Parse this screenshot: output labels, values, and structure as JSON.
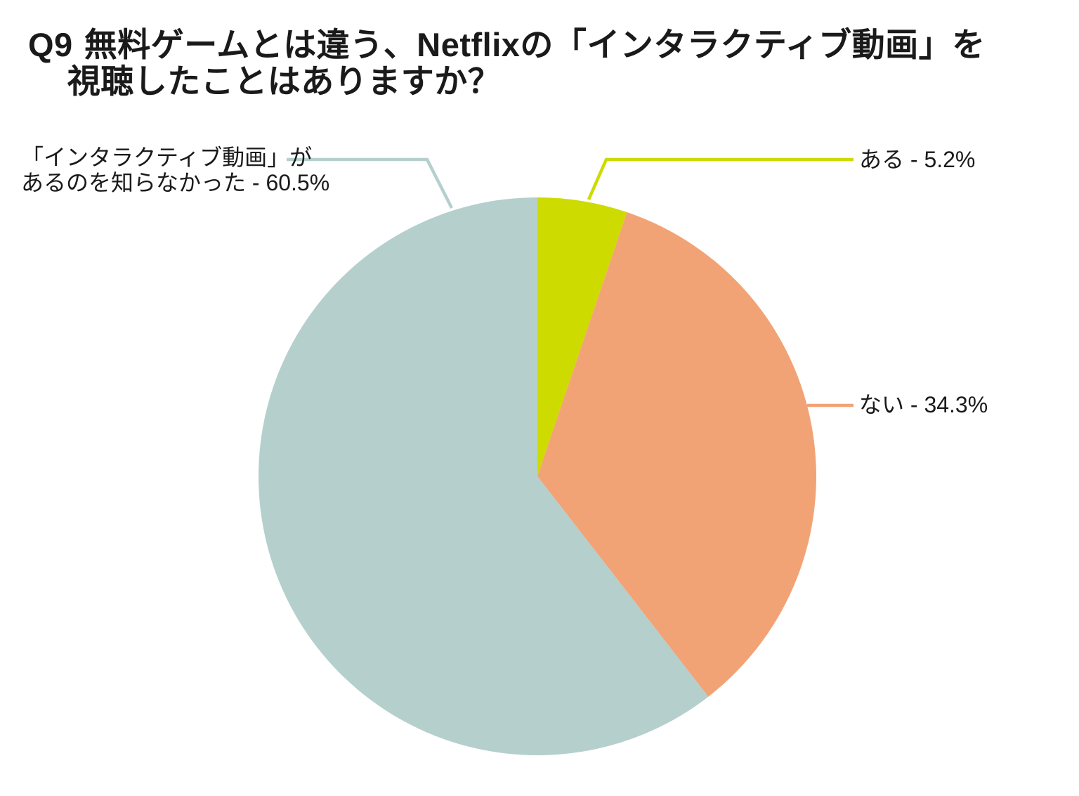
{
  "header": {
    "question_number": "Q9",
    "title_line1": "無料ゲームとは違う、Netflixの「インタラクティブ動画」を",
    "title_line2": "視聴したことはありますか？"
  },
  "chart_data": {
    "type": "pie",
    "title": "Q9 無料ゲームとは違う、Netflixの「インタラクティブ動画」を視聴したことはありますか？",
    "direction": "clockwise",
    "start_angle_deg": 0,
    "legend_position": "callout-labels",
    "background_color": "#ffffff",
    "text_color": "#1a1a1a",
    "slices": [
      {
        "label": "ある",
        "value": 5.2,
        "color": "#cedb00",
        "callout_lines": [
          "ある - 5.2%"
        ]
      },
      {
        "label": "ない",
        "value": 34.3,
        "color": "#f2a376",
        "callout_lines": [
          "ない - 34.3%"
        ]
      },
      {
        "label": "「インタラクティブ動画」があるのを知らなかった",
        "value": 60.5,
        "color": "#b5cfcd",
        "callout_lines": [
          "「インタラクティブ動画」が",
          "あるのを知らなかった - 60.5%"
        ]
      }
    ]
  }
}
